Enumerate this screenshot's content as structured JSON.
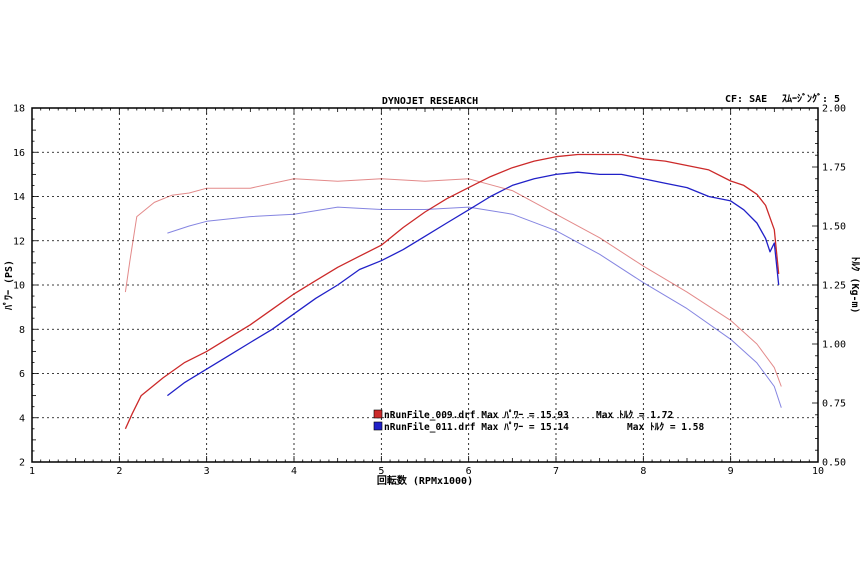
{
  "header": {
    "title": "DYNOJET RESEARCH",
    "cf_text": "CF: SAE",
    "smoothing_text": "ｽﾑｰｼﾞﾝｸﾞ: 5"
  },
  "chart_data": {
    "type": "line",
    "title": "DYNOJET RESEARCH",
    "xlabel": "回転数 (RPMx1000)",
    "ylabel_left": "ﾊﾟﾜｰ (PS)",
    "ylabel_right": "ﾄﾙｸ (Kg-m)",
    "xlim": [
      1,
      10
    ],
    "ylim_left": [
      2,
      18
    ],
    "ylim_right": [
      0.5,
      2.0
    ],
    "x_ticks": [
      "1",
      "2",
      "3",
      "4",
      "5",
      "6",
      "7",
      "8",
      "9",
      "10"
    ],
    "y_left_ticks": [
      "2",
      "4",
      "6",
      "8",
      "10",
      "12",
      "14",
      "16",
      "18"
    ],
    "y_right_ticks": [
      "0.50",
      "0.75",
      "1.00",
      "1.25",
      "1.50",
      "1.75",
      "2.00"
    ],
    "grid": true,
    "legend": [
      {
        "label": "nRunFile_009.drf Max ﾊﾟﾜｰ = 15.93",
        "torque_text": "Max ﾄﾙｸ = 1.72",
        "color": "#cc2a2a"
      },
      {
        "label": "nRunFile_011.drf Max ﾊﾟﾜｰ = 15.14",
        "torque_text": "Max ﾄﾙｸ = 1.58",
        "color": "#2121c8"
      }
    ],
    "series": [
      {
        "name": "nRunFile_009.drf ﾊﾟﾜｰ",
        "axis": "left",
        "color": "#cc2a2a",
        "light": false,
        "x": [
          2.07,
          2.15,
          2.25,
          2.5,
          2.75,
          3.0,
          3.25,
          3.5,
          3.75,
          4.0,
          4.25,
          4.5,
          4.75,
          5.0,
          5.25,
          5.5,
          5.75,
          6.0,
          6.25,
          6.5,
          6.75,
          7.0,
          7.25,
          7.5,
          7.75,
          8.0,
          8.25,
          8.5,
          8.75,
          9.0,
          9.15,
          9.3,
          9.4,
          9.5,
          9.55
        ],
        "y": [
          3.5,
          4.2,
          5.0,
          5.8,
          6.5,
          7.0,
          7.6,
          8.2,
          8.9,
          9.6,
          10.2,
          10.8,
          11.3,
          11.8,
          12.6,
          13.3,
          13.9,
          14.4,
          14.9,
          15.3,
          15.6,
          15.8,
          15.9,
          15.9,
          15.9,
          15.7,
          15.6,
          15.4,
          15.2,
          14.7,
          14.5,
          14.1,
          13.6,
          12.5,
          10.5
        ]
      },
      {
        "name": "nRunFile_011.drf ﾊﾟﾜｰ",
        "axis": "left",
        "color": "#2121c8",
        "light": false,
        "x": [
          2.55,
          2.75,
          3.0,
          3.25,
          3.5,
          3.75,
          4.0,
          4.25,
          4.5,
          4.75,
          5.0,
          5.25,
          5.5,
          5.75,
          6.0,
          6.25,
          6.5,
          6.75,
          7.0,
          7.25,
          7.5,
          7.75,
          8.0,
          8.25,
          8.5,
          8.75,
          9.0,
          9.15,
          9.3,
          9.4,
          9.45,
          9.5,
          9.55
        ],
        "y": [
          5.0,
          5.6,
          6.2,
          6.8,
          7.4,
          8.0,
          8.7,
          9.4,
          10.0,
          10.7,
          11.1,
          11.6,
          12.2,
          12.8,
          13.4,
          14.0,
          14.5,
          14.8,
          15.0,
          15.1,
          15.0,
          15.0,
          14.8,
          14.6,
          14.4,
          14.0,
          13.8,
          13.4,
          12.8,
          12.1,
          11.5,
          11.9,
          10.0
        ]
      },
      {
        "name": "nRunFile_009.drf ﾄﾙｸ",
        "axis": "right",
        "color": "#cc2a2a",
        "light": true,
        "x": [
          2.07,
          2.12,
          2.2,
          2.4,
          2.6,
          2.8,
          3.0,
          3.5,
          4.0,
          4.5,
          5.0,
          5.5,
          6.0,
          6.5,
          7.0,
          7.5,
          8.0,
          8.5,
          9.0,
          9.3,
          9.5,
          9.58
        ],
        "y": [
          1.22,
          1.35,
          1.54,
          1.6,
          1.63,
          1.64,
          1.66,
          1.66,
          1.7,
          1.69,
          1.7,
          1.69,
          1.7,
          1.65,
          1.55,
          1.45,
          1.33,
          1.22,
          1.1,
          1.0,
          0.9,
          0.82
        ]
      },
      {
        "name": "nRunFile_011.drf ﾄﾙｸ",
        "axis": "right",
        "color": "#2121c8",
        "light": true,
        "x": [
          2.55,
          2.8,
          3.0,
          3.5,
          4.0,
          4.5,
          5.0,
          5.5,
          6.0,
          6.5,
          7.0,
          7.5,
          8.0,
          8.5,
          9.0,
          9.3,
          9.5,
          9.58
        ],
        "y": [
          1.47,
          1.5,
          1.52,
          1.54,
          1.55,
          1.58,
          1.57,
          1.57,
          1.58,
          1.55,
          1.48,
          1.38,
          1.26,
          1.15,
          1.02,
          0.92,
          0.82,
          0.73
        ]
      }
    ]
  }
}
